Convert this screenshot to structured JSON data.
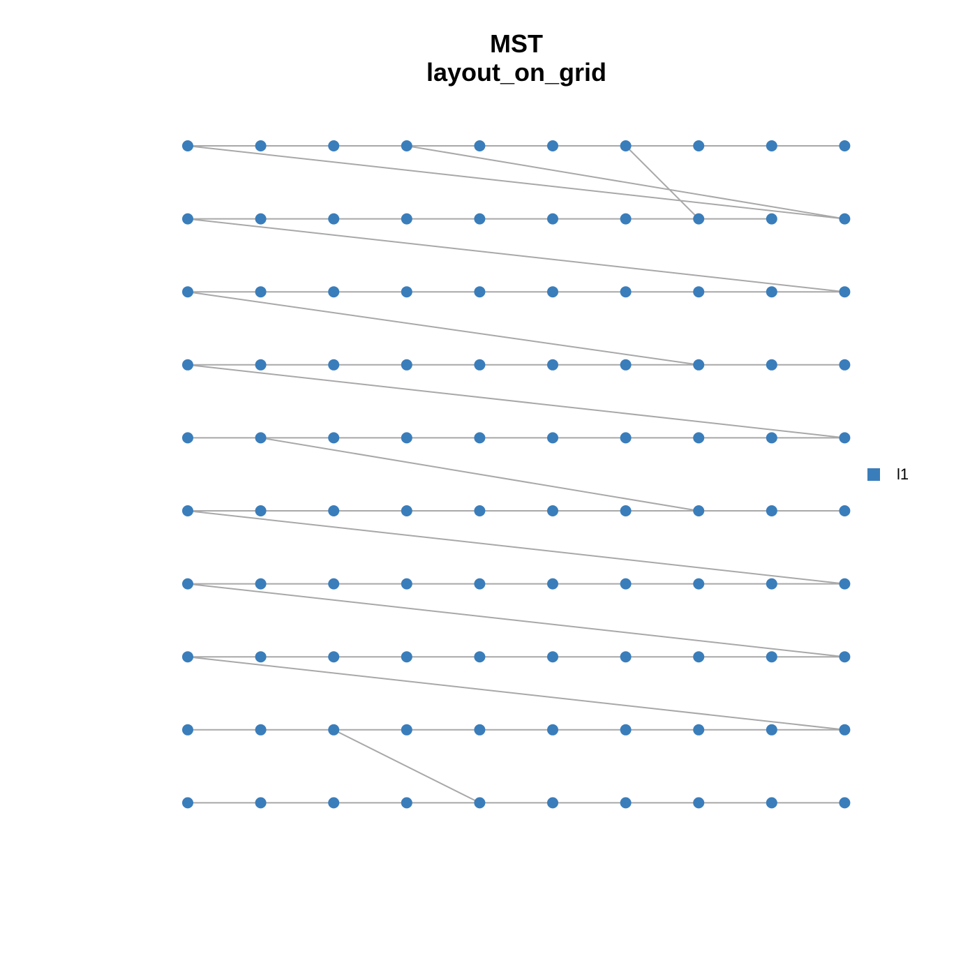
{
  "title": "MST",
  "subtitle": "layout_on_grid",
  "legend": {
    "label": "l1",
    "color": "#3a7dbb"
  }
}
